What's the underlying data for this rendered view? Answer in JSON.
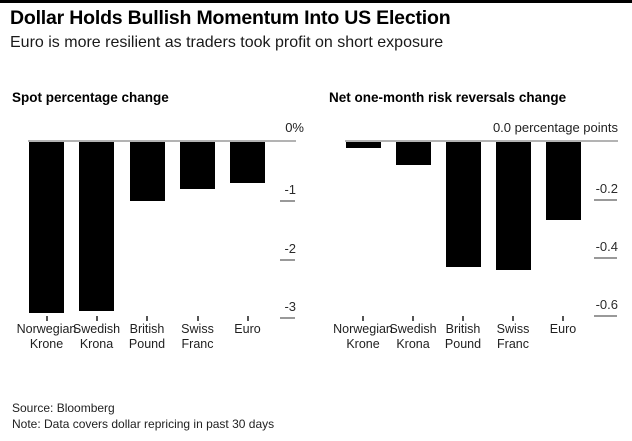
{
  "header": {
    "title": "Dollar Holds Bullish Momentum Into US Election",
    "subtitle": "Euro is more resilient as traders took profit on short exposure"
  },
  "footer": {
    "source": "Source: Bloomberg",
    "note": "Note: Data covers dollar repricing in past 30 days"
  },
  "colors": {
    "bar": "#000000",
    "zero_line": "#b3b3b3",
    "tick_dash": "#999999",
    "top_rule": "#000000",
    "background": "#ffffff"
  },
  "chart_data": [
    {
      "type": "bar",
      "title": "Spot percentage change",
      "axis_top_label": "0%",
      "categories": [
        "Norwegian Krone",
        "Swedish Krona",
        "British Pound",
        "Swiss Franc",
        "Euro"
      ],
      "category_lines": [
        [
          "Norwegian",
          "Krone"
        ],
        [
          "Swedish",
          "Krona"
        ],
        [
          "British",
          "Pound"
        ],
        [
          "Swiss",
          "Franc"
        ],
        [
          "Euro"
        ]
      ],
      "values": [
        -2.9,
        -2.87,
        -1.0,
        -0.8,
        -0.7
      ],
      "yticks": [
        -1,
        -2,
        -3
      ],
      "ytick_labels": [
        "-1",
        "-2",
        "-3"
      ],
      "ylim": [
        0,
        -3.05
      ],
      "ylabel": "%",
      "xlabel": "",
      "grid": false,
      "legend": null,
      "bar_color": "#000000"
    },
    {
      "type": "bar",
      "title": "Net one-month risk reversals change",
      "axis_top_label": "0.0 percentage points",
      "categories": [
        "Norwegian Krone",
        "Swedish Krona",
        "British Pound",
        "Swiss Franc",
        "Euro"
      ],
      "category_lines": [
        [
          "Norwegian",
          "Krone"
        ],
        [
          "Swedish",
          "Krona"
        ],
        [
          "British",
          "Pound"
        ],
        [
          "Swiss",
          "Franc"
        ],
        [
          "Euro"
        ]
      ],
      "values": [
        -0.02,
        -0.08,
        -0.43,
        -0.44,
        -0.27
      ],
      "yticks": [
        -0.2,
        -0.4,
        -0.6
      ],
      "ytick_labels": [
        "-0.2",
        "-0.4",
        "-0.6"
      ],
      "ylim": [
        0,
        -0.62
      ],
      "ylabel": "percentage points",
      "xlabel": "",
      "grid": false,
      "legend": null,
      "bar_color": "#000000"
    }
  ]
}
